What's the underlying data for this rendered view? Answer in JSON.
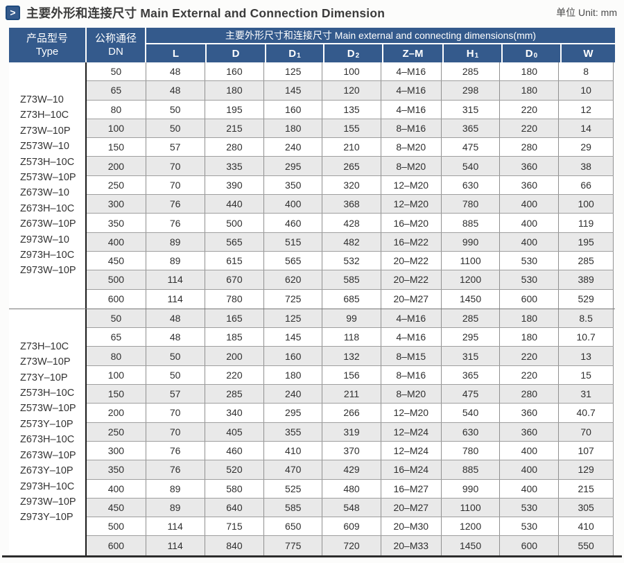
{
  "page": {
    "title": "主要外形和连接尺寸 Main External and Connection Dimension",
    "unit_label": "单位 Unit: mm",
    "marker_icon_glyph": ">"
  },
  "colors": {
    "header_blue": "#345a8c",
    "stripe": "#e9e9e9",
    "marker_border": "#1d4a7e"
  },
  "table": {
    "type_header": {
      "zh": "产品型号",
      "en": "Type"
    },
    "dn_header": {
      "zh": "公称通径",
      "en": "DN"
    },
    "span_header": "主要外形尺寸和连接尺寸 Main external and connecting dimensions(mm)",
    "columns": [
      {
        "base": "L",
        "sub": ""
      },
      {
        "base": "D",
        "sub": ""
      },
      {
        "base": "D",
        "sub": "1"
      },
      {
        "base": "D",
        "sub": "2"
      },
      {
        "base": "Z–M",
        "sub": ""
      },
      {
        "base": "H",
        "sub": "1"
      },
      {
        "base": "D",
        "sub": "0"
      },
      {
        "base": "W",
        "sub": ""
      }
    ],
    "groups": [
      {
        "types": [
          "Z73W–10",
          "Z73H–10C",
          "Z73W–10P",
          "Z573W–10",
          "Z573H–10C",
          "Z573W–10P",
          "Z673W–10",
          "Z673H–10C",
          "Z673W–10P",
          "Z973W–10",
          "Z973H–10C",
          "Z973W–10P"
        ],
        "rows": [
          [
            "50",
            "48",
            "160",
            "125",
            "100",
            "4–M16",
            "285",
            "180",
            "8"
          ],
          [
            "65",
            "48",
            "180",
            "145",
            "120",
            "4–M16",
            "298",
            "180",
            "10"
          ],
          [
            "80",
            "50",
            "195",
            "160",
            "135",
            "4–M16",
            "315",
            "220",
            "12"
          ],
          [
            "100",
            "50",
            "215",
            "180",
            "155",
            "8–M16",
            "365",
            "220",
            "14"
          ],
          [
            "150",
            "57",
            "280",
            "240",
            "210",
            "8–M20",
            "475",
            "280",
            "29"
          ],
          [
            "200",
            "70",
            "335",
            "295",
            "265",
            "8–M20",
            "540",
            "360",
            "38"
          ],
          [
            "250",
            "70",
            "390",
            "350",
            "320",
            "12–M20",
            "630",
            "360",
            "66"
          ],
          [
            "300",
            "76",
            "440",
            "400",
            "368",
            "12–M20",
            "780",
            "400",
            "100"
          ],
          [
            "350",
            "76",
            "500",
            "460",
            "428",
            "16–M20",
            "885",
            "400",
            "119"
          ],
          [
            "400",
            "89",
            "565",
            "515",
            "482",
            "16–M22",
            "990",
            "400",
            "195"
          ],
          [
            "450",
            "89",
            "615",
            "565",
            "532",
            "20–M22",
            "1100",
            "530",
            "285"
          ],
          [
            "500",
            "114",
            "670",
            "620",
            "585",
            "20–M22",
            "1200",
            "530",
            "389"
          ],
          [
            "600",
            "114",
            "780",
            "725",
            "685",
            "20–M27",
            "1450",
            "600",
            "529"
          ]
        ]
      },
      {
        "types": [
          "Z73H–10C",
          "Z73W–10P",
          "Z73Y–10P",
          "Z573H–10C",
          "Z573W–10P",
          "Z573Y–10P",
          "Z673H–10C",
          "Z673W–10P",
          "Z673Y–10P",
          "Z973H–10C",
          "Z973W–10P",
          "Z973Y–10P"
        ],
        "rows": [
          [
            "50",
            "48",
            "165",
            "125",
            "99",
            "4–M16",
            "285",
            "180",
            "8.5"
          ],
          [
            "65",
            "48",
            "185",
            "145",
            "118",
            "4–M16",
            "295",
            "180",
            "10.7"
          ],
          [
            "80",
            "50",
            "200",
            "160",
            "132",
            "8–M15",
            "315",
            "220",
            "13"
          ],
          [
            "100",
            "50",
            "220",
            "180",
            "156",
            "8–M16",
            "365",
            "220",
            "15"
          ],
          [
            "150",
            "57",
            "285",
            "240",
            "211",
            "8–M20",
            "475",
            "280",
            "31"
          ],
          [
            "200",
            "70",
            "340",
            "295",
            "266",
            "12–M20",
            "540",
            "360",
            "40.7"
          ],
          [
            "250",
            "70",
            "405",
            "355",
            "319",
            "12–M24",
            "630",
            "360",
            "70"
          ],
          [
            "300",
            "76",
            "460",
            "410",
            "370",
            "12–M24",
            "780",
            "400",
            "107"
          ],
          [
            "350",
            "76",
            "520",
            "470",
            "429",
            "16–M24",
            "885",
            "400",
            "129"
          ],
          [
            "400",
            "89",
            "580",
            "525",
            "480",
            "16–M27",
            "990",
            "400",
            "215"
          ],
          [
            "450",
            "89",
            "640",
            "585",
            "548",
            "20–M27",
            "1100",
            "530",
            "305"
          ],
          [
            "500",
            "114",
            "715",
            "650",
            "609",
            "20–M30",
            "1200",
            "530",
            "410"
          ],
          [
            "600",
            "114",
            "840",
            "775",
            "720",
            "20–M33",
            "1450",
            "600",
            "550"
          ]
        ]
      }
    ]
  }
}
